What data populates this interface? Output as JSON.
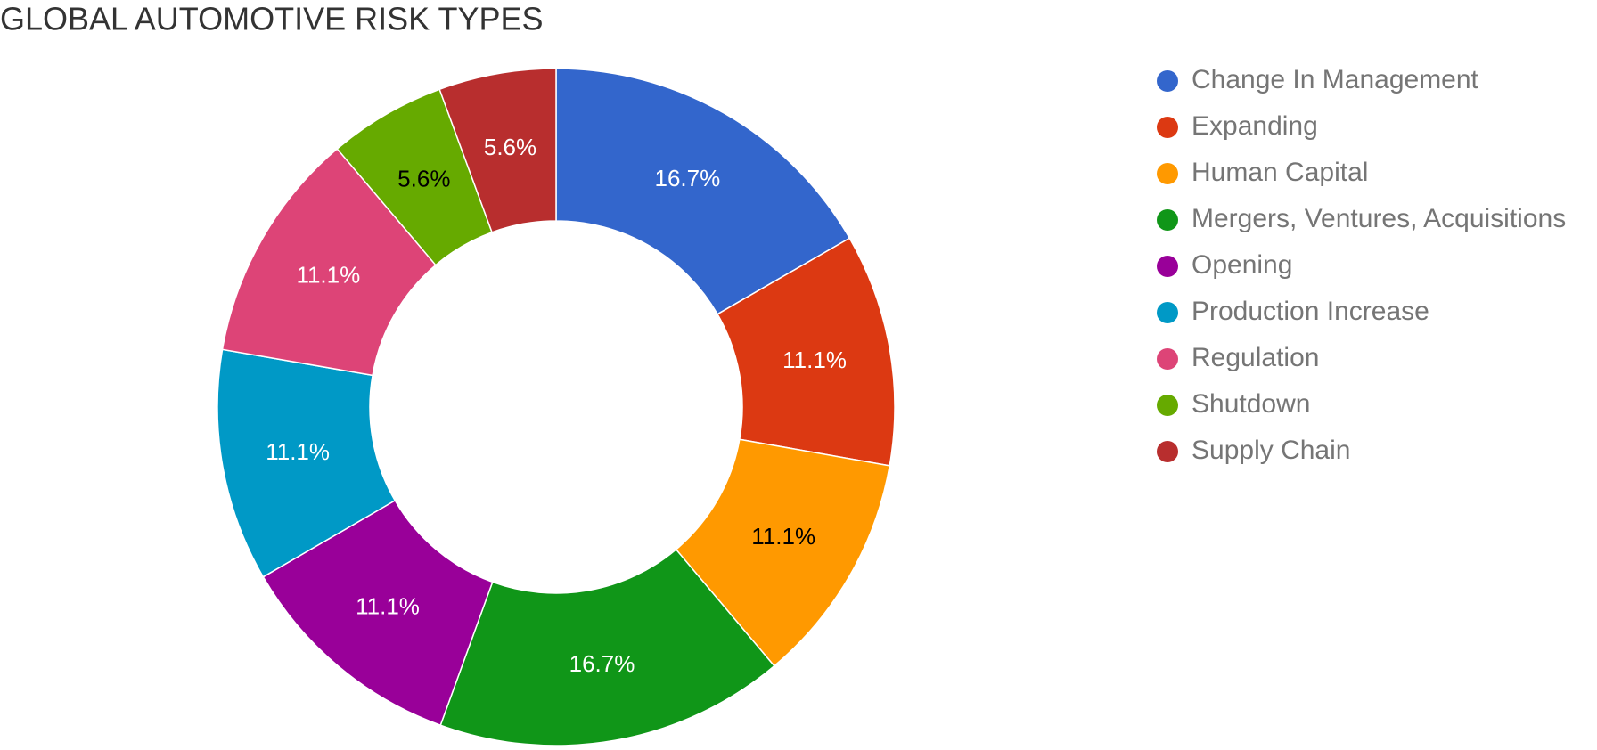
{
  "chart_data": {
    "type": "donut",
    "title": "GLOBAL AUTOMOTIVE RISK TYPES",
    "categories": [
      "Change In Management",
      "Expanding",
      "Human Capital",
      "Mergers, Ventures, Acquisitions",
      "Opening",
      "Production Increase",
      "Regulation",
      "Shutdown",
      "Supply Chain"
    ],
    "values": [
      16.7,
      11.1,
      11.1,
      16.7,
      11.1,
      11.1,
      11.1,
      5.6,
      5.6
    ],
    "value_labels": [
      "16.7%",
      "11.1%",
      "11.1%",
      "16.7%",
      "11.1%",
      "11.1%",
      "11.1%",
      "5.6%",
      "5.6%"
    ],
    "colors": [
      "#3366cc",
      "#dc3912",
      "#ff9900",
      "#109618",
      "#990099",
      "#0099c6",
      "#dd4477",
      "#66aa00",
      "#b82e2e"
    ],
    "legend": "right"
  }
}
